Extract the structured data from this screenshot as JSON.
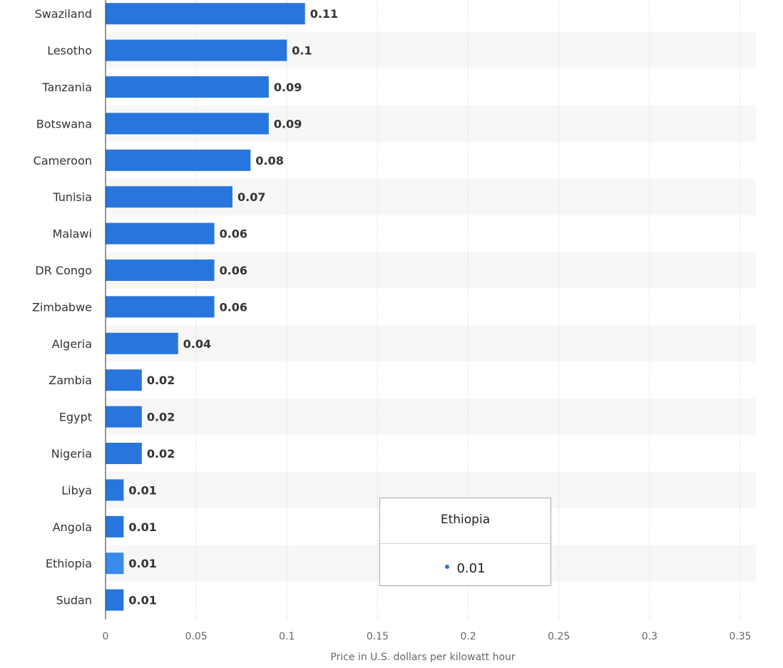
{
  "chart_data": {
    "type": "bar",
    "orientation": "horizontal",
    "categories": [
      "Swaziland",
      "Lesotho",
      "Tanzania",
      "Botswana",
      "Cameroon",
      "Tunisia",
      "Malawi",
      "DR Congo",
      "Zimbabwe",
      "Algeria",
      "Zambia",
      "Egypt",
      "Nigeria",
      "Libya",
      "Angola",
      "Ethiopia",
      "Sudan"
    ],
    "values": [
      0.11,
      0.1,
      0.09,
      0.09,
      0.08,
      0.07,
      0.06,
      0.06,
      0.06,
      0.04,
      0.02,
      0.02,
      0.02,
      0.01,
      0.01,
      0.01,
      0.01
    ],
    "value_labels": [
      "0.11",
      "0.1",
      "0.09",
      "0.09",
      "0.08",
      "0.07",
      "0.06",
      "0.06",
      "0.06",
      "0.04",
      "0.02",
      "0.02",
      "0.02",
      "0.01",
      "0.01",
      "0.01",
      "0.01"
    ],
    "xlabel": "Price in U.S. dollars per kilowatt hour",
    "xlim": [
      0,
      0.35
    ],
    "x_ticks": [
      "0",
      "0.05",
      "0.1",
      "0.15",
      "0.2",
      "0.25",
      "0.3",
      "0.35"
    ],
    "grid": true,
    "bar_color": "#2876dd",
    "highlight_color": "#3b8aeb",
    "highlighted_category": "Ethiopia"
  },
  "tooltip": {
    "title": "Ethiopia",
    "value": "0.01"
  }
}
